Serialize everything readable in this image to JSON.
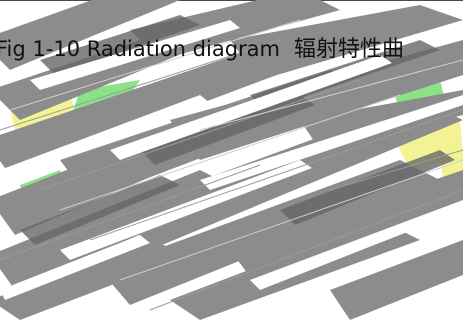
{
  "figure": {
    "caption_en": "Fig 1-10 Radiation diagram",
    "caption_zh": "辐射特性曲",
    "colors": {
      "background": "#ffffff",
      "streak_gray": "#8c8c8c",
      "streak_dark": "#666666",
      "accent_green": "#7fe07a",
      "accent_yellow": "#f2f28a",
      "rule": "#4a4a4a"
    }
  }
}
